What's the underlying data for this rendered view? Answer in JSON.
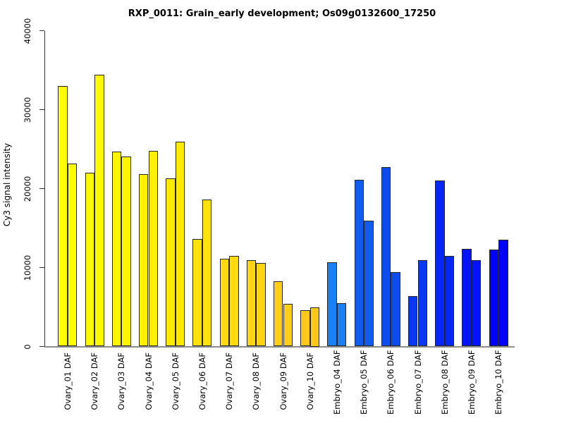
{
  "chart_data": {
    "type": "bar",
    "title": "RXP_0011: Grain_early development; Os09g0132600_17250",
    "ylabel": "Cy3 signal intensity",
    "xlabel": "",
    "ylim": [
      0,
      40000
    ],
    "ytick_values": [
      0,
      10000,
      20000,
      30000,
      40000
    ],
    "ytick_labels": [
      "0",
      "10000",
      "20000",
      "30000",
      "40000"
    ],
    "grid": false,
    "legend_position": "none",
    "bars_per_group": 2,
    "bar_border_color": "#262626",
    "axis_color": "#333333",
    "baseline_color": "#8e8e8e",
    "groups": [
      {
        "label": "Ovary_01 DAF",
        "color": "#FFFF00",
        "values": [
          33000,
          23200
        ]
      },
      {
        "label": "Ovary_02 DAF",
        "color": "#FFFA00",
        "values": [
          22000,
          34400
        ]
      },
      {
        "label": "Ovary_03 DAF",
        "color": "#FFF500",
        "values": [
          24700,
          24100
        ]
      },
      {
        "label": "Ovary_04 DAF",
        "color": "#FFF000",
        "values": [
          21800,
          24800
        ]
      },
      {
        "label": "Ovary_05 DAF",
        "color": "#FFEB00",
        "values": [
          21300,
          25900
        ]
      },
      {
        "label": "Ovary_06 DAF",
        "color": "#FFE10C",
        "values": [
          13600,
          18600
        ]
      },
      {
        "label": "Ovary_07 DAF",
        "color": "#FFDA0F",
        "values": [
          11100,
          11500
        ]
      },
      {
        "label": "Ovary_08 DAF",
        "color": "#FFD413",
        "values": [
          10900,
          10600
        ]
      },
      {
        "label": "Ovary_09 DAF",
        "color": "#FFCE17",
        "values": [
          8300,
          5400
        ]
      },
      {
        "label": "Ovary_10 DAF",
        "color": "#FFC91A",
        "values": [
          4600,
          5000
        ]
      },
      {
        "label": "Embryo_04 DAF",
        "color": "#1B80F5",
        "values": [
          10700,
          5500
        ]
      },
      {
        "label": "Embryo_05 DAF",
        "color": "#0F5CEF",
        "values": [
          21100,
          15900
        ]
      },
      {
        "label": "Embryo_06 DAF",
        "color": "#0D4CEC",
        "values": [
          22700,
          9400
        ]
      },
      {
        "label": "Embryo_07 DAF",
        "color": "#0A38F0",
        "values": [
          6400,
          10900
        ]
      },
      {
        "label": "Embryo_08 DAF",
        "color": "#0626F5",
        "values": [
          21000,
          11500
        ]
      },
      {
        "label": "Embryo_09 DAF",
        "color": "#0313FA",
        "values": [
          12400,
          10900
        ]
      },
      {
        "label": "Embryo_10 DAF",
        "color": "#0101FF",
        "values": [
          12300,
          13500
        ]
      }
    ]
  }
}
